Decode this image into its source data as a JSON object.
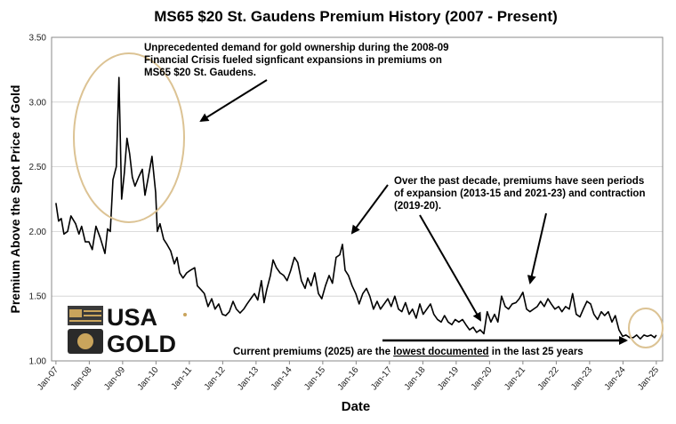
{
  "chart_data": {
    "type": "line",
    "title": "MS65 $20 St. Gaudens Premium History (2007 - Present)",
    "ylabel": "Premium Above the Spot Price of Gold",
    "xlabel": "Date",
    "color": "#000000",
    "grid": true,
    "xlim": [
      2006.87,
      2025.19
    ],
    "ylim": [
      1.0,
      3.5
    ],
    "xticks": [
      {
        "value": 2007,
        "label": "Jan-07"
      },
      {
        "value": 2008,
        "label": "Jan-08"
      },
      {
        "value": 2009,
        "label": "Jan-09"
      },
      {
        "value": 2010,
        "label": "Jan-10"
      },
      {
        "value": 2011,
        "label": "Jan-11"
      },
      {
        "value": 2012,
        "label": "Jan-12"
      },
      {
        "value": 2013,
        "label": "Jan-13"
      },
      {
        "value": 2014,
        "label": "Jan-14"
      },
      {
        "value": 2015,
        "label": "Jan-15"
      },
      {
        "value": 2016,
        "label": "Jan-16"
      },
      {
        "value": 2017,
        "label": "Jan-17"
      },
      {
        "value": 2018,
        "label": "Jan-18"
      },
      {
        "value": 2019,
        "label": "Jan-19"
      },
      {
        "value": 2020,
        "label": "Jan-20"
      },
      {
        "value": 2021,
        "label": "Jan-21"
      },
      {
        "value": 2022,
        "label": "Jan-22"
      },
      {
        "value": 2023,
        "label": "Jan-23"
      },
      {
        "value": 2024,
        "label": "Jan-24"
      },
      {
        "value": 2025,
        "label": "Jan-25"
      }
    ],
    "yticks": [
      {
        "value": 1.0,
        "label": "1.00"
      },
      {
        "value": 1.5,
        "label": "1.50"
      },
      {
        "value": 2.0,
        "label": "2.00"
      },
      {
        "value": 2.5,
        "label": "2.50"
      },
      {
        "value": 3.0,
        "label": "3.00"
      },
      {
        "value": 3.5,
        "label": "3.50"
      }
    ],
    "x": [
      2007.0,
      2007.08,
      2007.16,
      2007.24,
      2007.35,
      2007.45,
      2007.59,
      2007.69,
      2007.77,
      2007.88,
      2007.99,
      2008.09,
      2008.2,
      2008.33,
      2008.47,
      2008.55,
      2008.63,
      2008.71,
      2008.81,
      2008.89,
      2008.97,
      2009.05,
      2009.13,
      2009.21,
      2009.29,
      2009.37,
      2009.48,
      2009.59,
      2009.67,
      2009.77,
      2009.88,
      2009.99,
      2010.04,
      2010.12,
      2010.23,
      2010.33,
      2010.44,
      2010.55,
      2010.63,
      2010.71,
      2010.81,
      2010.92,
      2011.03,
      2011.16,
      2011.24,
      2011.35,
      2011.45,
      2011.56,
      2011.67,
      2011.77,
      2011.88,
      2011.99,
      2012.09,
      2012.2,
      2012.31,
      2012.41,
      2012.52,
      2012.63,
      2012.73,
      2012.84,
      2012.95,
      2013.05,
      2013.16,
      2013.24,
      2013.32,
      2013.43,
      2013.51,
      2013.61,
      2013.72,
      2013.83,
      2013.93,
      2014.04,
      2014.15,
      2014.25,
      2014.36,
      2014.47,
      2014.55,
      2014.65,
      2014.76,
      2014.87,
      2014.97,
      2015.08,
      2015.19,
      2015.29,
      2015.4,
      2015.51,
      2015.59,
      2015.67,
      2015.77,
      2015.88,
      2015.99,
      2016.09,
      2016.2,
      2016.31,
      2016.41,
      2016.52,
      2016.63,
      2016.73,
      2016.84,
      2016.95,
      2017.05,
      2017.16,
      2017.27,
      2017.37,
      2017.48,
      2017.59,
      2017.69,
      2017.8,
      2017.91,
      2018.01,
      2018.12,
      2018.23,
      2018.33,
      2018.44,
      2018.55,
      2018.65,
      2018.76,
      2018.87,
      2018.97,
      2019.08,
      2019.19,
      2019.29,
      2019.4,
      2019.51,
      2019.61,
      2019.72,
      2019.83,
      2019.93,
      2020.04,
      2020.15,
      2020.25,
      2020.36,
      2020.47,
      2020.57,
      2020.68,
      2020.79,
      2020.89,
      2021.0,
      2021.11,
      2021.21,
      2021.32,
      2021.43,
      2021.53,
      2021.64,
      2021.75,
      2021.85,
      2021.96,
      2022.07,
      2022.17,
      2022.28,
      2022.39,
      2022.49,
      2022.6,
      2022.71,
      2022.81,
      2022.92,
      2023.03,
      2023.13,
      2023.24,
      2023.35,
      2023.45,
      2023.56,
      2023.67,
      2023.77,
      2023.88,
      2023.99,
      2024.09,
      2024.2,
      2024.31,
      2024.41,
      2024.52,
      2024.63,
      2024.73,
      2024.84,
      2024.95,
      2025.0
    ],
    "values": [
      2.22,
      2.08,
      2.1,
      1.98,
      2.0,
      2.12,
      2.06,
      1.98,
      2.04,
      1.92,
      1.92,
      1.86,
      2.04,
      1.95,
      1.83,
      2.02,
      2.0,
      2.4,
      2.5,
      3.19,
      2.25,
      2.45,
      2.72,
      2.6,
      2.42,
      2.35,
      2.42,
      2.48,
      2.28,
      2.42,
      2.58,
      2.3,
      2.0,
      2.06,
      1.94,
      1.9,
      1.85,
      1.75,
      1.8,
      1.68,
      1.64,
      1.68,
      1.7,
      1.72,
      1.58,
      1.55,
      1.52,
      1.42,
      1.48,
      1.4,
      1.44,
      1.36,
      1.35,
      1.38,
      1.46,
      1.4,
      1.37,
      1.4,
      1.44,
      1.48,
      1.52,
      1.47,
      1.62,
      1.45,
      1.55,
      1.66,
      1.78,
      1.72,
      1.68,
      1.66,
      1.62,
      1.7,
      1.8,
      1.76,
      1.62,
      1.56,
      1.64,
      1.58,
      1.68,
      1.52,
      1.48,
      1.58,
      1.66,
      1.6,
      1.8,
      1.82,
      1.9,
      1.7,
      1.66,
      1.58,
      1.52,
      1.44,
      1.52,
      1.56,
      1.5,
      1.4,
      1.46,
      1.4,
      1.44,
      1.48,
      1.42,
      1.5,
      1.4,
      1.38,
      1.45,
      1.36,
      1.4,
      1.33,
      1.44,
      1.36,
      1.4,
      1.44,
      1.36,
      1.32,
      1.3,
      1.35,
      1.3,
      1.28,
      1.32,
      1.3,
      1.32,
      1.28,
      1.24,
      1.26,
      1.22,
      1.24,
      1.21,
      1.38,
      1.3,
      1.36,
      1.3,
      1.5,
      1.42,
      1.4,
      1.44,
      1.45,
      1.48,
      1.53,
      1.4,
      1.38,
      1.4,
      1.42,
      1.46,
      1.42,
      1.48,
      1.44,
      1.4,
      1.42,
      1.38,
      1.42,
      1.4,
      1.52,
      1.36,
      1.34,
      1.4,
      1.46,
      1.44,
      1.36,
      1.32,
      1.38,
      1.35,
      1.38,
      1.3,
      1.35,
      1.24,
      1.19,
      1.2,
      1.18,
      1.18,
      1.2,
      1.17,
      1.2,
      1.19,
      1.2,
      1.18,
      1.2
    ],
    "annotations": [
      [
        "Unprecedented demand for gold ownership during the 2008-09",
        "Financial Crisis fueled signficant expansions in premiums on",
        "MS65 $20 St. Gaudens."
      ],
      [
        "Over the past decade, premiums have seen periods",
        "of expansion (2013-15 and 2021-23) and contraction",
        "(2019-20)."
      ],
      [
        "Current premiums (2025) are the ",
        "lowest documented",
        " in the last 25 years"
      ]
    ],
    "logo": [
      "USA",
      "GOLD"
    ]
  }
}
